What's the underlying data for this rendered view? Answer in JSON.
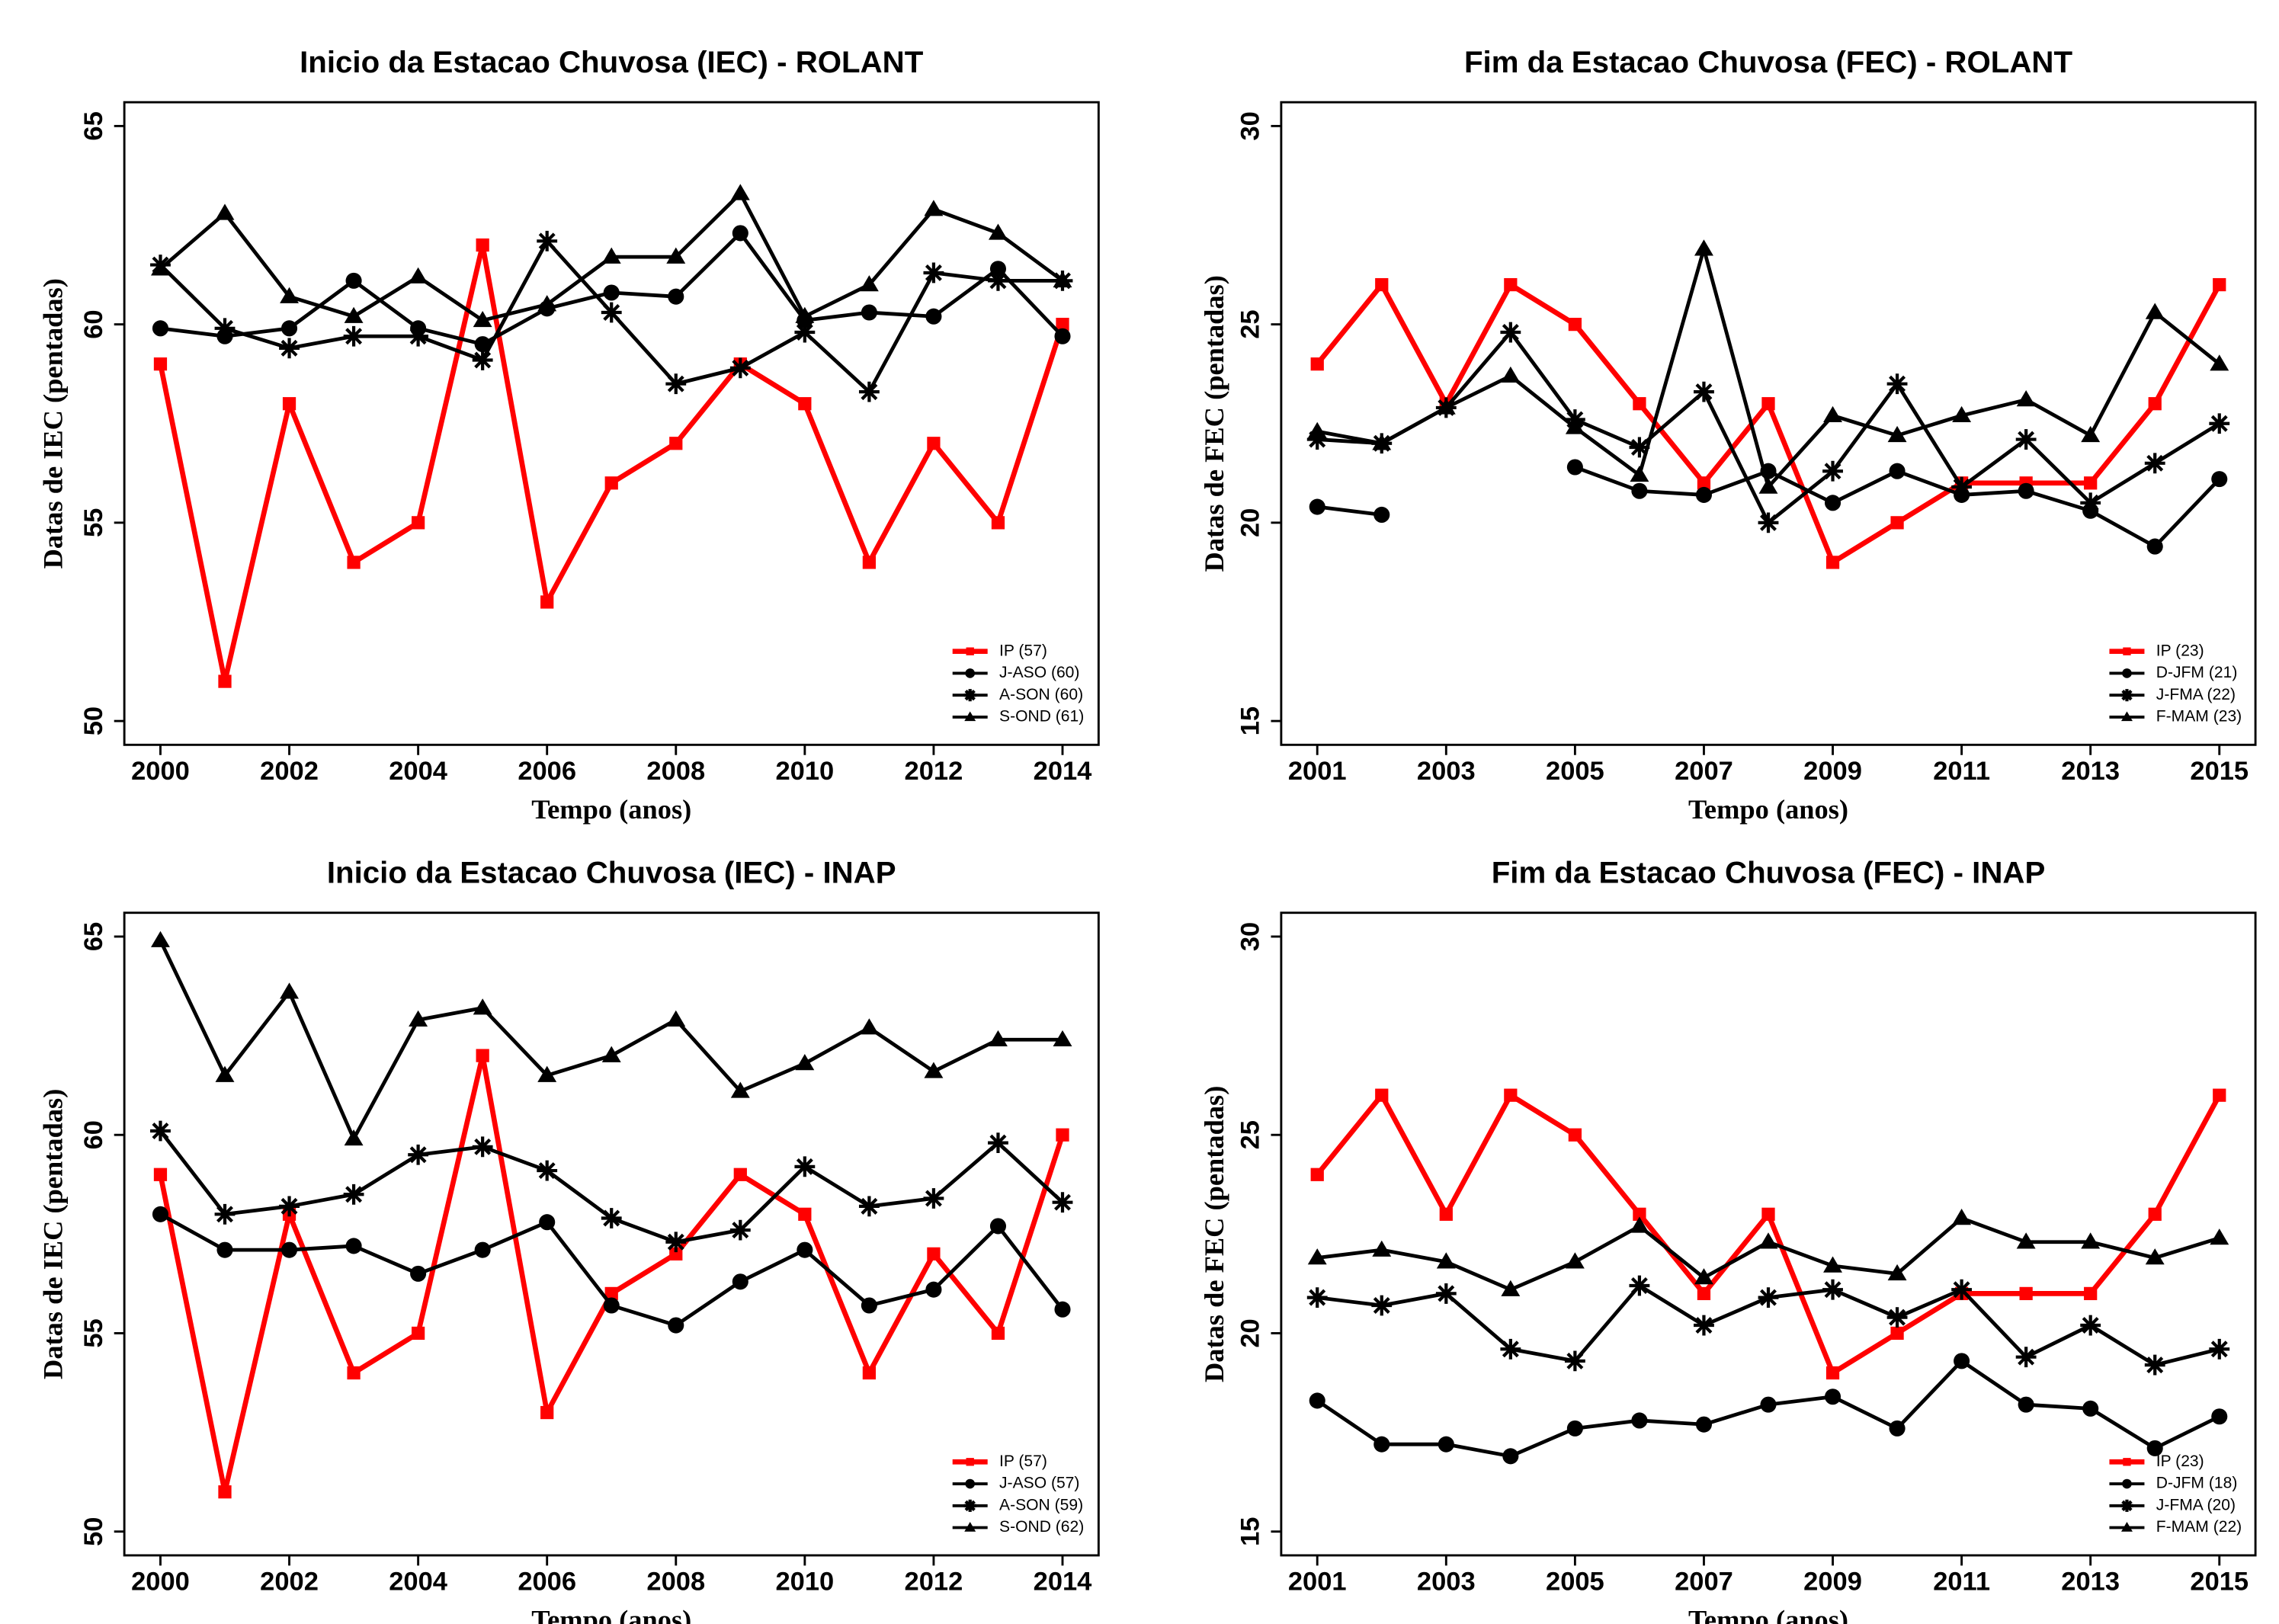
{
  "chart_data": [
    {
      "type": "line",
      "title": "Inicio da Estacao Chuvosa (IEC) - ROLANT",
      "xlabel": "Tempo (anos)",
      "ylabel": "Datas de IEC (pentadas)",
      "x": [
        2000,
        2001,
        2002,
        2003,
        2004,
        2005,
        2006,
        2007,
        2008,
        2009,
        2010,
        2011,
        2012,
        2013,
        2014
      ],
      "xlim": [
        1999.44,
        2014.56
      ],
      "xticks": [
        2000,
        2002,
        2004,
        2006,
        2008,
        2010,
        2012,
        2014
      ],
      "ylim": [
        49.4,
        65.6
      ],
      "yticks": [
        50,
        55,
        60,
        65
      ],
      "grid": false,
      "legend": "lower right",
      "series": [
        {
          "name": "IP (57)",
          "color": "#ff0000",
          "marker": "square",
          "values": [
            59,
            51,
            58,
            54,
            55,
            62,
            53,
            56,
            57,
            59,
            58,
            54,
            57,
            55,
            60
          ]
        },
        {
          "name": "J-ASO (60)",
          "color": "#000000",
          "marker": "circle",
          "values": [
            59.9,
            59.7,
            59.9,
            61.1,
            59.9,
            59.5,
            60.4,
            60.8,
            60.7,
            62.3,
            60.1,
            60.3,
            60.2,
            61.4,
            59.7
          ]
        },
        {
          "name": "A-SON (60)",
          "color": "#000000",
          "marker": "asterisk",
          "values": [
            61.5,
            59.9,
            59.4,
            59.7,
            59.7,
            59.1,
            62.1,
            60.3,
            58.5,
            58.9,
            59.8,
            58.3,
            61.3,
            61.1,
            61.1
          ]
        },
        {
          "name": "S-OND (61)",
          "color": "#000000",
          "marker": "triangle",
          "values": [
            61.4,
            62.8,
            60.7,
            60.2,
            61.2,
            60.1,
            60.5,
            61.7,
            61.7,
            63.3,
            60.2,
            61.0,
            62.9,
            62.3,
            61.1
          ]
        }
      ]
    },
    {
      "type": "line",
      "title": "Fim da Estacao Chuvosa (FEC) - ROLANT",
      "xlabel": "Tempo (anos)",
      "ylabel": "Datas de FEC (pentadas)",
      "x": [
        2001,
        2002,
        2003,
        2004,
        2005,
        2006,
        2007,
        2008,
        2009,
        2010,
        2011,
        2012,
        2013,
        2014,
        2015
      ],
      "xlim": [
        2000.44,
        2015.56
      ],
      "xticks": [
        2001,
        2003,
        2005,
        2007,
        2009,
        2011,
        2013,
        2015
      ],
      "ylim": [
        14.4,
        30.6
      ],
      "yticks": [
        15,
        20,
        25,
        30
      ],
      "grid": false,
      "legend": "lower right",
      "series": [
        {
          "name": "IP (23)",
          "color": "#ff0000",
          "marker": "square",
          "values": [
            24,
            26,
            23,
            26,
            25,
            23,
            21,
            23,
            19,
            20,
            21,
            21,
            21,
            23,
            26
          ]
        },
        {
          "name": "D-JFM (21)",
          "color": "#000000",
          "marker": "circle",
          "values": [
            20.4,
            20.2,
            null,
            null,
            21.4,
            20.8,
            20.7,
            21.3,
            20.5,
            21.3,
            20.7,
            20.8,
            20.3,
            19.4,
            21.1
          ]
        },
        {
          "name": "J-FMA (22)",
          "color": "#000000",
          "marker": "asterisk",
          "values": [
            22.1,
            22.0,
            22.9,
            24.8,
            22.6,
            21.9,
            23.3,
            20.0,
            21.3,
            23.5,
            20.9,
            22.1,
            20.5,
            21.5,
            22.5
          ]
        },
        {
          "name": "F-MAM (23)",
          "color": "#000000",
          "marker": "triangle",
          "values": [
            22.3,
            22.0,
            22.9,
            23.7,
            22.4,
            21.2,
            26.9,
            20.9,
            22.7,
            22.2,
            22.7,
            23.1,
            22.2,
            25.3,
            24.0
          ]
        }
      ]
    },
    {
      "type": "line",
      "title": "Inicio da Estacao Chuvosa (IEC) - INAP",
      "xlabel": "Tempo (anos)",
      "ylabel": "Datas de IEC (pentadas)",
      "x": [
        2000,
        2001,
        2002,
        2003,
        2004,
        2005,
        2006,
        2007,
        2008,
        2009,
        2010,
        2011,
        2012,
        2013,
        2014
      ],
      "xlim": [
        1999.44,
        2014.56
      ],
      "xticks": [
        2000,
        2002,
        2004,
        2006,
        2008,
        2010,
        2012,
        2014
      ],
      "ylim": [
        49.4,
        65.6
      ],
      "yticks": [
        50,
        55,
        60,
        65
      ],
      "grid": false,
      "legend": "lower right",
      "series": [
        {
          "name": "IP (57)",
          "color": "#ff0000",
          "marker": "square",
          "values": [
            59,
            51,
            58,
            54,
            55,
            62,
            53,
            56,
            57,
            59,
            58,
            54,
            57,
            55,
            60
          ]
        },
        {
          "name": "J-ASO (57)",
          "color": "#000000",
          "marker": "circle",
          "values": [
            58.0,
            57.1,
            57.1,
            57.2,
            56.5,
            57.1,
            57.8,
            55.7,
            55.2,
            56.3,
            57.1,
            55.7,
            56.1,
            57.7,
            55.6
          ]
        },
        {
          "name": "A-SON (59)",
          "color": "#000000",
          "marker": "asterisk",
          "values": [
            60.1,
            58.0,
            58.2,
            58.5,
            59.5,
            59.7,
            59.1,
            57.9,
            57.3,
            57.6,
            59.2,
            58.2,
            58.4,
            59.8,
            58.3
          ]
        },
        {
          "name": "S-OND (62)",
          "color": "#000000",
          "marker": "triangle",
          "values": [
            64.9,
            61.5,
            63.6,
            59.9,
            62.9,
            63.2,
            61.5,
            62.0,
            62.9,
            61.1,
            61.8,
            62.7,
            61.6,
            62.4,
            62.4
          ]
        }
      ]
    },
    {
      "type": "line",
      "title": "Fim da Estacao Chuvosa (FEC) - INAP",
      "xlabel": "Tempo (anos)",
      "ylabel": "Datas de FEC (pentadas)",
      "x": [
        2001,
        2002,
        2003,
        2004,
        2005,
        2006,
        2007,
        2008,
        2009,
        2010,
        2011,
        2012,
        2013,
        2014,
        2015
      ],
      "xlim": [
        2000.44,
        2015.56
      ],
      "xticks": [
        2001,
        2003,
        2005,
        2007,
        2009,
        2011,
        2013,
        2015
      ],
      "ylim": [
        14.4,
        30.6
      ],
      "yticks": [
        15,
        20,
        25,
        30
      ],
      "grid": false,
      "legend": "lower right",
      "series": [
        {
          "name": "IP (23)",
          "color": "#ff0000",
          "marker": "square",
          "values": [
            24,
            26,
            23,
            26,
            25,
            23,
            21,
            23,
            19,
            20,
            21,
            21,
            21,
            23,
            26
          ]
        },
        {
          "name": "D-JFM (18)",
          "color": "#000000",
          "marker": "circle",
          "values": [
            18.3,
            17.2,
            17.2,
            16.9,
            17.6,
            17.8,
            17.7,
            18.2,
            18.4,
            17.6,
            19.3,
            18.2,
            18.1,
            17.1,
            17.9
          ]
        },
        {
          "name": "J-FMA (20)",
          "color": "#000000",
          "marker": "asterisk",
          "values": [
            20.9,
            20.7,
            21.0,
            19.6,
            19.3,
            21.2,
            20.2,
            20.9,
            21.1,
            20.4,
            21.1,
            19.4,
            20.2,
            19.2,
            19.6
          ]
        },
        {
          "name": "F-MAM (22)",
          "color": "#000000",
          "marker": "triangle",
          "values": [
            21.9,
            22.1,
            21.8,
            21.1,
            21.8,
            22.7,
            21.4,
            22.3,
            21.7,
            21.5,
            22.9,
            22.3,
            22.3,
            21.9,
            22.4
          ]
        }
      ]
    }
  ]
}
